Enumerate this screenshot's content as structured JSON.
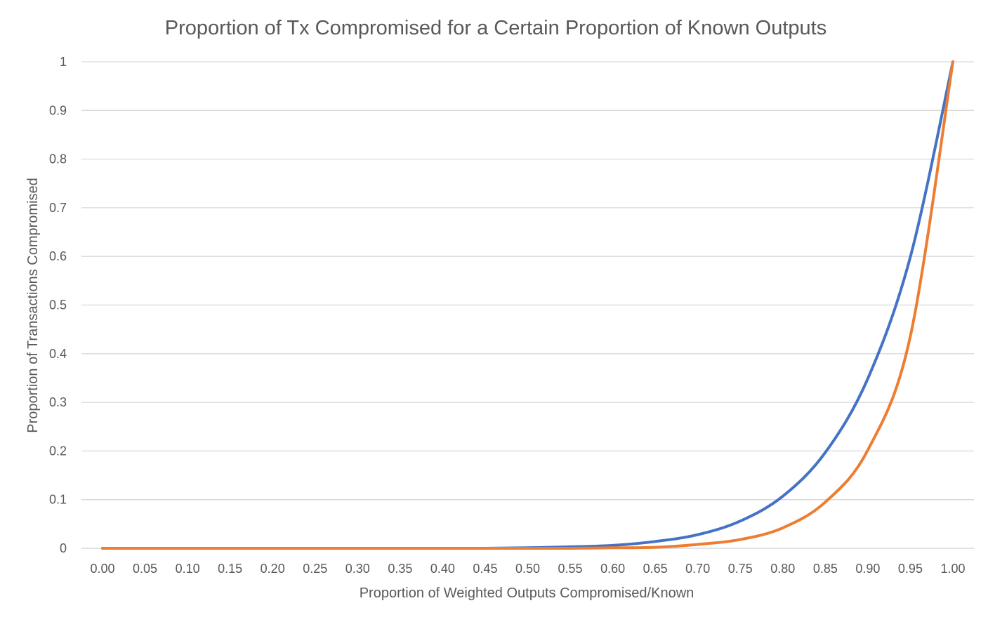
{
  "chart_data": {
    "type": "line",
    "title": "Proportion of Tx Compromised for a Certain Proportion of Known Outputs",
    "xlabel": "Proportion of Weighted Outputs Compromised/Known",
    "ylabel": "Proportion of Transactions Compromised",
    "categories": [
      "0.00",
      "0.05",
      "0.10",
      "0.15",
      "0.20",
      "0.25",
      "0.30",
      "0.35",
      "0.40",
      "0.45",
      "0.50",
      "0.55",
      "0.60",
      "0.65",
      "0.70",
      "0.75",
      "0.80",
      "0.85",
      "0.90",
      "0.95",
      "1.00"
    ],
    "x": [
      0.0,
      0.05,
      0.1,
      0.15,
      0.2,
      0.25,
      0.3,
      0.35,
      0.4,
      0.45,
      0.5,
      0.55,
      0.6,
      0.65,
      0.7,
      0.75,
      0.8,
      0.85,
      0.9,
      0.95,
      1.0
    ],
    "yticks": [
      "0",
      "0.1",
      "0.2",
      "0.3",
      "0.4",
      "0.5",
      "0.6",
      "0.7",
      "0.8",
      "0.9",
      "1"
    ],
    "ylim": [
      0,
      1
    ],
    "grid": true,
    "legend": "none",
    "series": [
      {
        "color": "#4472c4",
        "values": [
          0,
          0,
          0,
          0,
          0,
          0,
          0,
          0,
          0,
          0,
          0.001,
          0.003,
          0.006,
          0.014,
          0.028,
          0.056,
          0.107,
          0.197,
          0.349,
          0.599,
          1.0
        ]
      },
      {
        "color": "#ed7d31",
        "values": [
          0,
          0,
          0,
          0,
          0,
          0,
          0,
          0,
          0,
          0,
          0,
          0,
          0.001,
          0.002,
          0.008,
          0.018,
          0.042,
          0.095,
          0.202,
          0.436,
          1.0
        ]
      }
    ]
  }
}
